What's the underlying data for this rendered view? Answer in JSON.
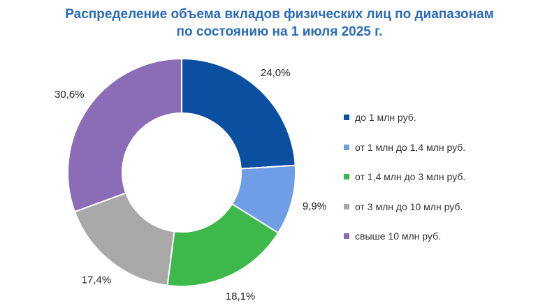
{
  "chart_data": {
    "type": "pie",
    "title_line1": "Распределение объема вкладов физических лиц по диапазонам",
    "title_line2": "по состоянию на 1 июля 2025 г.",
    "legend_position": "right",
    "slices": [
      {
        "name": "до 1 млн руб.",
        "value": 24.0,
        "label": "24,0%",
        "color": "#0a4fa0"
      },
      {
        "name": "от 1 млн до 1,4 млн руб.",
        "value": 9.9,
        "label": "9,9%",
        "color": "#6f9de6"
      },
      {
        "name": "от 1,4 млн до 3 млн руб.",
        "value": 18.1,
        "label": "18,1%",
        "color": "#3db84a"
      },
      {
        "name": "от 3 млн до 10 млн руб.",
        "value": 17.4,
        "label": "17,4%",
        "color": "#a8a8a8"
      },
      {
        "name": "свыше 10 млн руб.",
        "value": 30.6,
        "label": "30,6%",
        "color": "#8a6cb7"
      }
    ]
  }
}
